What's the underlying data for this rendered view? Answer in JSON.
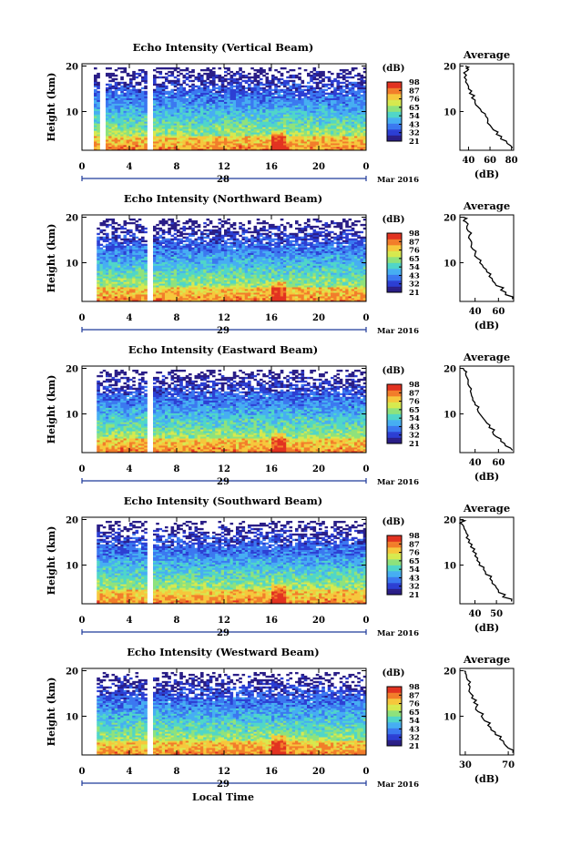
{
  "colors": {
    "colormap": [
      "#2a1e87",
      "#2c3fd3",
      "#3b78f0",
      "#46aef2",
      "#50d6c8",
      "#8fe27c",
      "#d7e94f",
      "#f6c73c",
      "#f27d2a",
      "#e23220"
    ],
    "line": "#000000"
  },
  "date_label": "Mar 2016",
  "xlabel": "Local Time",
  "chart_data": [
    {
      "type": "heatmap",
      "title": "Echo Intensity (Vertical Beam)",
      "ylabel": "Height (km)",
      "x_ticks": [
        "0",
        "4",
        "8",
        "12",
        "16",
        "20",
        "0"
      ],
      "y_ticks": [
        "10",
        "20"
      ],
      "day_label": "28",
      "xlim": [
        0,
        24
      ],
      "ylim": [
        1.5,
        20.5
      ],
      "colorbar": {
        "unit": "(dB)",
        "ticks": [
          "21",
          "32",
          "43",
          "54",
          "65",
          "76",
          "87",
          "98"
        ]
      },
      "data_gaps_hours": [
        [
          0,
          0.9
        ],
        [
          1.6,
          1.9
        ],
        [
          5.4,
          5.9
        ],
        [
          17.4,
          17.6
        ]
      ],
      "average_profile": {
        "title": "Average",
        "xlabel": "(dB)",
        "x_ticks": [
          "40",
          "60",
          "80"
        ],
        "xlim": [
          32,
          82
        ],
        "y_ticks": [
          "10",
          "20"
        ],
        "x": [
          81,
          76,
          70,
          66,
          63,
          60,
          58,
          56,
          52,
          49,
          46,
          43,
          41,
          40,
          39,
          38,
          38,
          39,
          38,
          37
        ],
        "y": [
          2,
          3,
          4,
          5,
          6,
          7,
          8,
          9,
          10,
          11,
          12,
          13,
          14,
          15,
          16,
          17,
          18,
          19,
          19.5,
          20
        ]
      }
    },
    {
      "type": "heatmap",
      "title": "Echo Intensity (Northward Beam)",
      "ylabel": "Height (km)",
      "x_ticks": [
        "0",
        "4",
        "8",
        "12",
        "16",
        "20",
        "0"
      ],
      "y_ticks": [
        "10",
        "20"
      ],
      "day_label": "29",
      "xlim": [
        0,
        24
      ],
      "ylim": [
        1.5,
        20.5
      ],
      "colorbar": {
        "unit": "(dB)",
        "ticks": [
          "21",
          "32",
          "43",
          "54",
          "65",
          "76",
          "87",
          "98"
        ]
      },
      "data_gaps_hours": [
        [
          0,
          1.3
        ],
        [
          5.5,
          5.9
        ],
        [
          17.4,
          17.6
        ]
      ],
      "average_profile": {
        "title": "Average",
        "xlabel": "(dB)",
        "x_ticks": [
          "40",
          "60"
        ],
        "xlim": [
          27,
          73
        ],
        "y_ticks": [
          "10",
          "20"
        ],
        "x": [
          72,
          66,
          62,
          58,
          55,
          52,
          50,
          47,
          44,
          42,
          40,
          38,
          37,
          36,
          35,
          34,
          33,
          32,
          31,
          30
        ],
        "y": [
          2,
          3,
          4,
          5,
          6,
          7,
          8,
          9,
          10,
          11,
          12,
          13,
          14,
          15,
          16,
          17,
          18,
          19,
          19.5,
          20
        ]
      }
    },
    {
      "type": "heatmap",
      "title": "Echo Intensity (Eastward Beam)",
      "ylabel": "Height (km)",
      "x_ticks": [
        "0",
        "4",
        "8",
        "12",
        "16",
        "20",
        "0"
      ],
      "y_ticks": [
        "10",
        "20"
      ],
      "day_label": "29",
      "xlim": [
        0,
        24
      ],
      "ylim": [
        1.5,
        20.5
      ],
      "colorbar": {
        "unit": "(dB)",
        "ticks": [
          "21",
          "32",
          "43",
          "54",
          "65",
          "76",
          "87",
          "98"
        ]
      },
      "data_gaps_hours": [
        [
          0,
          1.3
        ],
        [
          5.5,
          5.9
        ],
        [
          17.4,
          17.6
        ]
      ],
      "average_profile": {
        "title": "Average",
        "xlabel": "(dB)",
        "x_ticks": [
          "40",
          "60"
        ],
        "xlim": [
          27,
          73
        ],
        "y_ticks": [
          "10",
          "20"
        ],
        "x": [
          72,
          66,
          62,
          58,
          55,
          52,
          50,
          47,
          44,
          42,
          40,
          38,
          37,
          36,
          35,
          34,
          33,
          32,
          31,
          30
        ],
        "y": [
          2,
          3,
          4,
          5,
          6,
          7,
          8,
          9,
          10,
          11,
          12,
          13,
          14,
          15,
          16,
          17,
          18,
          19,
          19.5,
          20
        ]
      }
    },
    {
      "type": "heatmap",
      "title": "Echo Intensity (Southward Beam)",
      "ylabel": "Height (km)",
      "x_ticks": [
        "0",
        "4",
        "8",
        "12",
        "16",
        "20",
        "0"
      ],
      "y_ticks": [
        "10",
        "20"
      ],
      "day_label": "29",
      "xlim": [
        0,
        24
      ],
      "ylim": [
        1.5,
        20.5
      ],
      "colorbar": {
        "unit": "(dB)",
        "ticks": [
          "21",
          "32",
          "43",
          "54",
          "65",
          "76",
          "87",
          "98"
        ]
      },
      "data_gaps_hours": [
        [
          0,
          1.3
        ],
        [
          5.5,
          5.9
        ],
        [
          17.4,
          17.6
        ]
      ],
      "average_profile": {
        "title": "Average",
        "xlabel": "(dB)",
        "x_ticks": [
          "40",
          "50"
        ],
        "xlim": [
          33,
          58
        ],
        "y_ticks": [
          "10",
          "20"
        ],
        "x": [
          57,
          53,
          51,
          50,
          48,
          47,
          45,
          44,
          42,
          41,
          40,
          39,
          38,
          37,
          36,
          36,
          35,
          34,
          34,
          33
        ],
        "y": [
          2,
          3,
          4,
          5,
          6,
          7,
          8,
          9,
          10,
          11,
          12,
          13,
          14,
          15,
          16,
          17,
          18,
          19,
          19.5,
          20
        ]
      }
    },
    {
      "type": "heatmap",
      "title": "Echo Intensity (Westward Beam)",
      "ylabel": "Height (km)",
      "x_ticks": [
        "0",
        "4",
        "8",
        "12",
        "16",
        "20",
        "0"
      ],
      "y_ticks": [
        "10",
        "20"
      ],
      "day_label": "29",
      "xlim": [
        0,
        24
      ],
      "ylim": [
        1.5,
        20.5
      ],
      "colorbar": {
        "unit": "(dB)",
        "ticks": [
          "21",
          "32",
          "43",
          "54",
          "65",
          "76",
          "87",
          "98"
        ]
      },
      "data_gaps_hours": [
        [
          0,
          1.3
        ],
        [
          5.5,
          5.9
        ],
        [
          17.4,
          17.6
        ]
      ],
      "average_profile": {
        "title": "Average",
        "xlabel": "(dB)",
        "x_ticks": [
          "30",
          "70"
        ],
        "xlim": [
          25,
          75
        ],
        "y_ticks": [
          "10",
          "20"
        ],
        "x": [
          74,
          70,
          66,
          62,
          58,
          54,
          51,
          48,
          45,
          42,
          40,
          38,
          36,
          35,
          34,
          33,
          32,
          31,
          30,
          29
        ],
        "y": [
          2,
          3,
          4,
          5,
          6,
          7,
          8,
          9,
          10,
          11,
          12,
          13,
          14,
          15,
          16,
          17,
          18,
          19,
          19.5,
          20
        ]
      }
    }
  ]
}
